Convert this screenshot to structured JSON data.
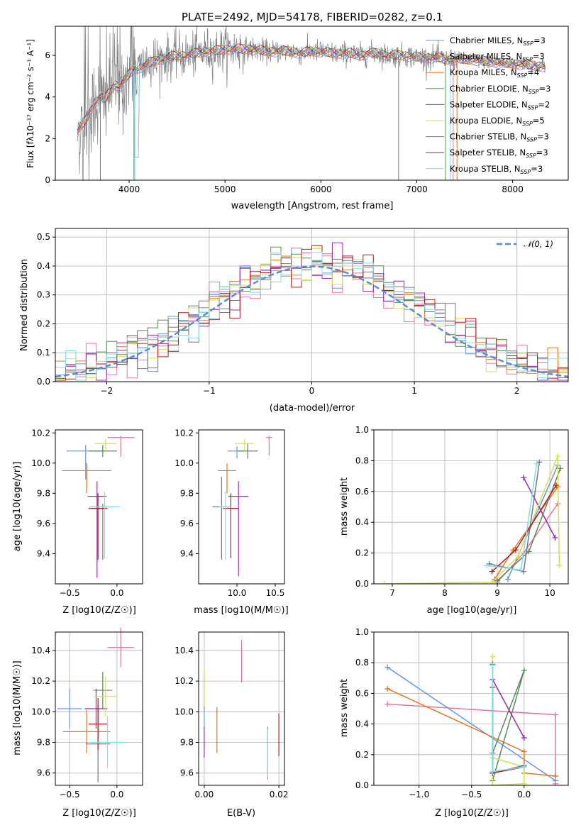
{
  "colors": [
    "#6495ed",
    "#e8769a",
    "#e6751e",
    "#5a8a5a",
    "#9c27b0",
    "#d4e157",
    "#777777",
    "#b71c1c",
    "#80deea"
  ],
  "spectrum": {
    "title": "PLATE=2492, MJD=54178, FIBERID=0282, z=0.1",
    "xlabel": "wavelength [Angstrom, rest frame]",
    "ylabel": "Flux [fλ10⁻¹⁷ erg cm⁻² s⁻¹ A⁻¹]",
    "legend": [
      "Chabrier MILES, N_SSP=3",
      "Salpeter MILES, N_SSP=3",
      "Kroupa MILES, N_SSP=4",
      "Chabrier ELODIE, N_SSP=3",
      "Salpeter ELODIE, N_SSP=2",
      "Kroupa ELODIE, N_SSP=5",
      "Chabrier STELIB, N_SSP=3",
      "Salpeter STELIB, N_SSP=3",
      "Kroupa STELIB, N_SSP=3"
    ]
  },
  "residuals": {
    "xlabel": "(data-model)/error",
    "ylabel": "Normed distribution",
    "legend": "𝒩(0, 1)"
  },
  "panel_labels": {
    "age_axis": "age  [log10(age/yr)]",
    "z_axis": "Z [log10(Z/Z☉)]",
    "mass_axis": "mass [log10(M/M☉)]",
    "mass_weight": "mass weight",
    "ebv": "E(B-V)"
  },
  "chart_data": [
    {
      "type": "line",
      "title": "PLATE=2492, MJD=54178, FIBERID=0282, z=0.1",
      "xlabel": "wavelength [Angstrom, rest frame]",
      "ylabel": "Flux [fλ10⁻¹⁷ erg cm⁻² s⁻¹ A⁻¹]",
      "xlim": [
        3230,
        8580
      ],
      "ylim": [
        0,
        7.4
      ],
      "xticks": [
        4000,
        5000,
        6000,
        7000,
        8000
      ],
      "yticks": [
        0,
        2,
        4,
        6
      ],
      "data_x": [
        3460,
        3500,
        3550,
        3600,
        3650,
        3700,
        3750,
        3800,
        3850,
        3900,
        3950,
        4000,
        4050,
        4100,
        4200,
        4300,
        4400,
        4500,
        4600,
        4700,
        4800,
        4900,
        5000,
        5100,
        5200,
        5300,
        5400,
        5500,
        5600,
        5700,
        5800,
        5900,
        6000,
        6100,
        6200,
        6300,
        6400,
        6500,
        6600,
        6700,
        6800,
        6900,
        7000,
        7100,
        7200,
        7300,
        7400,
        7500,
        7600,
        7700,
        7800,
        7900,
        8000,
        8100,
        8200,
        8300
      ],
      "data_y": [
        2.3,
        2.6,
        2.9,
        3.4,
        3.8,
        4.0,
        3.9,
        4.3,
        4.6,
        4.5,
        4.8,
        5.1,
        5.3,
        5.4,
        5.6,
        5.8,
        5.9,
        6.0,
        6.0,
        6.1,
        6.2,
        6.2,
        6.3,
        6.3,
        6.3,
        6.3,
        6.2,
        6.2,
        6.2,
        6.2,
        6.1,
        6.2,
        6.2,
        6.1,
        6.1,
        6.1,
        6.0,
        6.1,
        6.1,
        6.0,
        6.0,
        6.0,
        5.9,
        5.9,
        5.9,
        5.8,
        5.8,
        5.8,
        5.8,
        5.7,
        5.7,
        5.6,
        5.6,
        5.6,
        5.5,
        5.5
      ],
      "legend": [
        "Chabrier MILES, N_SSP=3",
        "Salpeter MILES, N_SSP=3",
        "Kroupa MILES, N_SSP=4",
        "Chabrier ELODIE, N_SSP=3",
        "Salpeter ELODIE, N_SSP=2",
        "Kroupa ELODIE, N_SSP=5",
        "Chabrier STELIB, N_SSP=3",
        "Salpeter STELIB, N_SSP=3",
        "Kroupa STELIB, N_SSP=3"
      ]
    },
    {
      "type": "line",
      "xlabel": "(data-model)/error",
      "ylabel": "Normed distribution",
      "xlim": [
        -2.5,
        2.5
      ],
      "ylim": [
        0,
        0.53
      ],
      "xticks": [
        -2,
        -1,
        0,
        1,
        2
      ],
      "yticks": [
        0.0,
        0.1,
        0.2,
        0.3,
        0.4,
        0.5
      ],
      "legend": "𝒩(0, 1)"
    },
    {
      "type": "scatter",
      "xlabel": "Z [log10(Z/Z☉)]",
      "ylabel": "age  [log10(age/yr)]",
      "xlim": [
        -0.65,
        0.27
      ],
      "ylim": [
        9.2,
        10.22
      ],
      "xticks": [
        -0.5,
        0.0
      ],
      "yticks": [
        9.4,
        9.6,
        9.8,
        10.0,
        10.2
      ],
      "points": [
        {
          "x": -0.33,
          "y": 10.08,
          "xerr": 0.2,
          "yerr": [
            0.19,
            0.04
          ]
        },
        {
          "x": 0.04,
          "y": 10.17,
          "xerr": 0.14,
          "yerr": [
            0.13,
            0.01
          ]
        },
        {
          "x": -0.32,
          "y": 9.95,
          "xerr": 0.26,
          "yerr": [
            0.15,
            0.05
          ]
        },
        {
          "x": -0.15,
          "y": 10.08,
          "xerr": 0.15,
          "yerr": [
            0.04,
            0.04
          ]
        },
        {
          "x": -0.21,
          "y": 9.78,
          "xerr": 0.1,
          "yerr": [
            0.54,
            0.1
          ]
        },
        {
          "x": -0.12,
          "y": 10.13,
          "xerr": 0.12,
          "yerr": [
            0.04,
            0.03
          ]
        },
        {
          "x": -0.15,
          "y": 9.71,
          "xerr": 0.12,
          "yerr": [
            0.35,
            0.02
          ]
        },
        {
          "x": -0.2,
          "y": 9.7,
          "xerr": 0.1,
          "yerr": [
            0.34,
            0.1
          ]
        },
        {
          "x": -0.13,
          "y": 9.71,
          "xerr": 0.16,
          "yerr": [
            0.34,
            0.1
          ]
        }
      ]
    },
    {
      "type": "scatter",
      "xlabel": "mass [log10(M/M☉)]",
      "xlim": [
        9.5,
        10.62
      ],
      "ylim": [
        9.2,
        10.22
      ],
      "xticks": [
        10.0,
        10.5
      ],
      "yticks": [
        9.4,
        9.6,
        9.8,
        10.0,
        10.2
      ],
      "points": [
        {
          "x": 10.0,
          "y": 10.08,
          "xerr": 0.12,
          "yerr": [
            0.05,
            0.03
          ]
        },
        {
          "x": 10.42,
          "y": 10.17,
          "xerr": 0.04,
          "yerr": [
            0.12,
            0.01
          ]
        },
        {
          "x": 9.87,
          "y": 9.95,
          "xerr": 0.12,
          "yerr": [
            0.15,
            0.05
          ]
        },
        {
          "x": 10.14,
          "y": 10.08,
          "xerr": 0.13,
          "yerr": [
            0.05,
            0.05
          ]
        },
        {
          "x": 10.02,
          "y": 9.78,
          "xerr": 0.13,
          "yerr": [
            0.53,
            0.1
          ]
        },
        {
          "x": 10.1,
          "y": 10.13,
          "xerr": 0.12,
          "yerr": [
            0.05,
            0.03
          ]
        },
        {
          "x": 9.8,
          "y": 9.71,
          "xerr": 0.12,
          "yerr": [
            0.35,
            0.2
          ]
        },
        {
          "x": 9.92,
          "y": 9.7,
          "xerr": 0.1,
          "yerr": [
            0.33,
            0.1
          ]
        },
        {
          "x": 9.85,
          "y": 9.71,
          "xerr": 0.08,
          "yerr": [
            0.35,
            0.1
          ]
        }
      ]
    },
    {
      "type": "line",
      "xlabel": "age  [log10(age/yr)]",
      "ylabel": "mass weight",
      "xlim": [
        6.65,
        10.35
      ],
      "ylim": [
        0,
        1.0
      ],
      "xticks": [
        7,
        8,
        9,
        10
      ],
      "yticks": [
        0.0,
        0.2,
        0.4,
        0.6,
        0.8,
        1.0
      ],
      "series": [
        {
          "x": [
            9.2,
            10.15
          ],
          "y": [
            0.03,
            0.77
          ]
        },
        {
          "x": [
            9.0,
            9.5,
            10.15
          ],
          "y": [
            0.01,
            0.2,
            0.52
          ]
        },
        {
          "x": [
            8.95,
            9.3,
            10.15
          ],
          "y": [
            0.03,
            0.22,
            0.63
          ]
        },
        {
          "x": [
            9.0,
            9.6,
            10.2
          ],
          "y": [
            0.02,
            0.21,
            0.75
          ]
        },
        {
          "x": [
            9.5,
            10.1
          ],
          "y": [
            0.69,
            0.3
          ]
        },
        {
          "x": [
            6.85,
            8.9,
            9.4,
            10.15,
            10.18
          ],
          "y": [
            0.0,
            0.01,
            0.18,
            0.83,
            0.12
          ]
        },
        {
          "x": [
            8.85,
            9.5,
            9.8
          ],
          "y": [
            0.13,
            0.08,
            0.79
          ]
        },
        {
          "x": [
            8.9,
            9.35,
            10.12
          ],
          "y": [
            0.08,
            0.22,
            0.64
          ]
        },
        {
          "x": [
            8.8,
            9.45,
            9.75
          ],
          "y": [
            0.12,
            0.09,
            0.78
          ]
        }
      ]
    },
    {
      "type": "scatter",
      "xlabel": "Z [log10(Z/Z☉)]",
      "ylabel": "mass [log10(M/M☉)]",
      "xlim": [
        -0.65,
        0.27
      ],
      "ylim": [
        9.52,
        10.52
      ],
      "xticks": [
        -0.5,
        0.0
      ],
      "yticks": [
        9.6,
        9.8,
        10.0,
        10.2,
        10.4
      ],
      "points": [
        {
          "x": -0.5,
          "y": 10.02,
          "xerr": 0.13,
          "yerr": 0.13
        },
        {
          "x": 0.04,
          "y": 10.42,
          "xerr": 0.14,
          "yerr": 0.13
        },
        {
          "x": -0.32,
          "y": 9.87,
          "xerr": 0.25,
          "yerr": 0.14
        },
        {
          "x": -0.15,
          "y": 10.14,
          "xerr": 0.1,
          "yerr": 0.12
        },
        {
          "x": -0.22,
          "y": 10.02,
          "xerr": 0.12,
          "yerr": 0.13
        },
        {
          "x": -0.12,
          "y": 10.1,
          "xerr": 0.12,
          "yerr": 0.13
        },
        {
          "x": -0.2,
          "y": 9.79,
          "xerr": 0.13,
          "yerr": 0.25
        },
        {
          "x": -0.2,
          "y": 9.92,
          "xerr": 0.1,
          "yerr": 0.17
        },
        {
          "x": -0.1,
          "y": 9.8,
          "xerr": 0.18,
          "yerr": 0.17
        }
      ]
    },
    {
      "type": "scatter",
      "xlabel": "E(B-V)",
      "xlim": [
        -0.0015,
        0.0215
      ],
      "ylim": [
        9.52,
        10.52
      ],
      "xticks": [
        0.0,
        0.02
      ],
      "yticks": [
        9.6,
        9.8,
        10.0,
        10.2,
        10.4
      ],
      "points": [
        {
          "x": 0.0,
          "y": 10.02,
          "yerr": 0.13
        },
        {
          "x": 0.01,
          "y": 10.33,
          "yerr": 0.14
        },
        {
          "x": 0.0034,
          "y": 9.88,
          "yerr": 0.15
        },
        {
          "x": 0.0,
          "y": 10.14,
          "yerr": 0.12
        },
        {
          "x": 0.0,
          "y": 9.8,
          "yerr": 0.1
        },
        {
          "x": 0.0,
          "y": 10.15,
          "yerr": 0.12
        },
        {
          "x": 0.017,
          "y": 9.73,
          "yerr": 0.17
        },
        {
          "x": 0.02,
          "y": 9.85,
          "yerr": 0.14
        },
        {
          "x": 0.017,
          "y": 9.73,
          "yerr": 0.16
        }
      ]
    },
    {
      "type": "line",
      "xlabel": "Z [log10(Z/Z☉)]",
      "ylabel": "mass weight",
      "xlim": [
        -1.43,
        0.42
      ],
      "ylim": [
        0,
        1.0
      ],
      "xticks": [
        -1.0,
        -0.5,
        0.0
      ],
      "yticks": [
        0.0,
        0.2,
        0.4,
        0.6,
        0.8,
        1.0
      ],
      "series": [
        {
          "x": [
            -1.3,
            0.3
          ],
          "y": [
            0.77,
            0.03
          ]
        },
        {
          "x": [
            -1.3,
            0.3,
            0.3
          ],
          "y": [
            0.53,
            0.46,
            0.01
          ]
        },
        {
          "x": [
            -1.3,
            0.0,
            0.0,
            0.3
          ],
          "y": [
            0.63,
            0.22,
            0.08,
            0.06
          ]
        },
        {
          "x": [
            -0.3,
            0.0,
            -0.3
          ],
          "y": [
            0.03,
            0.75,
            0.21
          ]
        },
        {
          "x": [
            -0.3,
            0.0
          ],
          "y": [
            0.69,
            0.31
          ]
        },
        {
          "x": [
            -0.3,
            -0.3,
            0.0,
            0.0,
            -0.3
          ],
          "y": [
            0.84,
            0.0,
            0.01,
            0.12,
            0.18
          ]
        },
        {
          "x": [
            -0.3,
            -0.3,
            0.0
          ],
          "y": [
            0.79,
            0.08,
            0.13
          ]
        },
        {
          "x": [
            -0.3,
            -0.3,
            0.0
          ],
          "y": [
            0.64,
            0.08,
            0.12
          ]
        },
        {
          "x": [
            -0.3,
            -0.3,
            0.0
          ],
          "y": [
            0.78,
            0.09,
            0.12
          ]
        }
      ]
    }
  ]
}
